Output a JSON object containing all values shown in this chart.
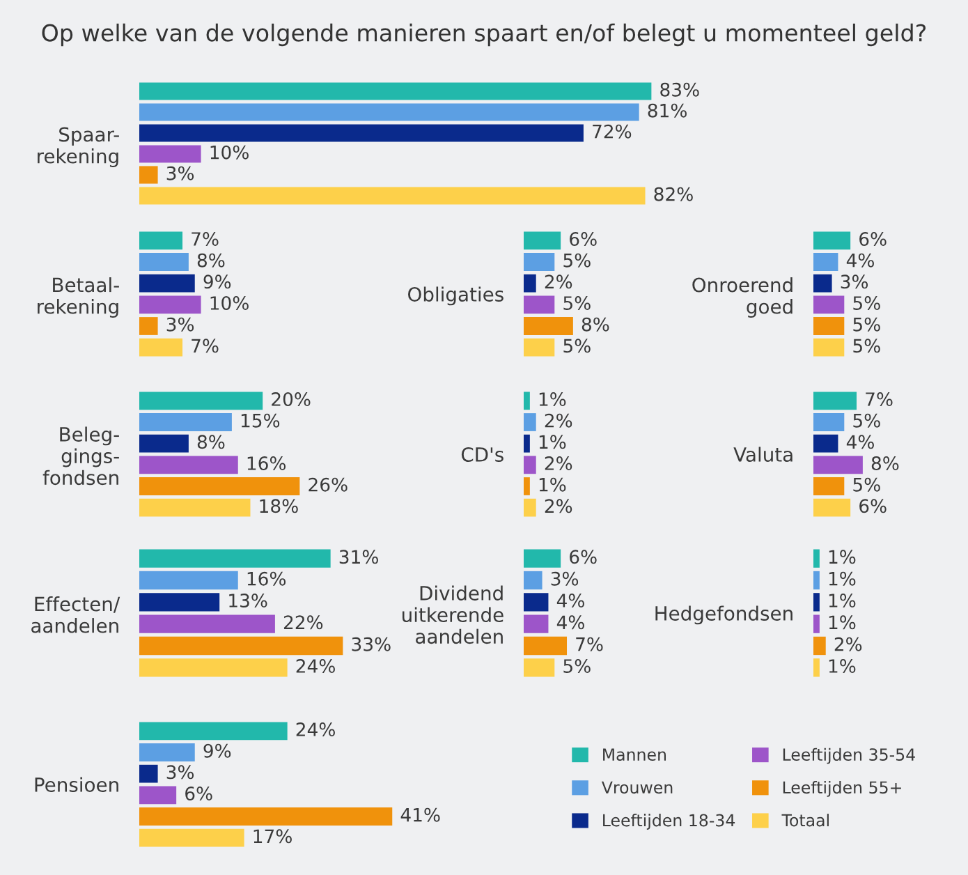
{
  "chart_data": [
    {
      "type": "bar",
      "orientation": "horizontal",
      "title": "Op welke van de volgende manieren spaart en/of belegt u momenteel geld?",
      "categories": [
        "Spaar-\nrekening"
      ],
      "series": [
        {
          "color": "#22b8ab",
          "values": [
            83
          ],
          "value_labels": [
            "83%"
          ]
        },
        {
          "color": "#5c9fe3",
          "values": [
            81
          ],
          "value_labels": [
            "81%"
          ]
        },
        {
          "color": "#0a2a8c",
          "values": [
            72
          ],
          "value_labels": [
            "72%"
          ]
        },
        {
          "color": "#9d55c9",
          "values": [
            10
          ],
          "value_labels": [
            "10%"
          ]
        },
        {
          "color": "#f0920c",
          "values": [
            3
          ],
          "value_labels": [
            "3%"
          ]
        },
        {
          "color": "#fdd04a",
          "values": [
            82
          ],
          "value_labels": [
            "82%"
          ]
        }
      ]
    },
    {
      "type": "bar",
      "orientation": "horizontal",
      "categories": [
        "Betaal-\nrekening"
      ],
      "series": [
        {
          "color": "#22b8ab",
          "values": [
            7
          ],
          "value_labels": [
            "7%"
          ]
        },
        {
          "color": "#5c9fe3",
          "values": [
            8
          ],
          "value_labels": [
            "8%"
          ]
        },
        {
          "color": "#0a2a8c",
          "values": [
            9
          ],
          "value_labels": [
            "9%"
          ]
        },
        {
          "color": "#9d55c9",
          "values": [
            10
          ],
          "value_labels": [
            "10%"
          ]
        },
        {
          "color": "#f0920c",
          "values": [
            3
          ],
          "value_labels": [
            "3%"
          ]
        },
        {
          "color": "#fdd04a",
          "values": [
            7
          ],
          "value_labels": [
            "7%"
          ]
        }
      ]
    },
    {
      "type": "bar",
      "orientation": "horizontal",
      "categories": [
        "Obligaties"
      ],
      "series": [
        {
          "color": "#22b8ab",
          "values": [
            6
          ],
          "value_labels": [
            "6%"
          ]
        },
        {
          "color": "#5c9fe3",
          "values": [
            5
          ],
          "value_labels": [
            "5%"
          ]
        },
        {
          "color": "#0a2a8c",
          "values": [
            2
          ],
          "value_labels": [
            "2%"
          ]
        },
        {
          "color": "#9d55c9",
          "values": [
            5
          ],
          "value_labels": [
            "5%"
          ]
        },
        {
          "color": "#f0920c",
          "values": [
            8
          ],
          "value_labels": [
            "8%"
          ]
        },
        {
          "color": "#fdd04a",
          "values": [
            5
          ],
          "value_labels": [
            "5%"
          ]
        }
      ]
    },
    {
      "type": "bar",
      "orientation": "horizontal",
      "categories": [
        "Onroerend\ngoed"
      ],
      "series": [
        {
          "color": "#22b8ab",
          "values": [
            6
          ],
          "value_labels": [
            "6%"
          ]
        },
        {
          "color": "#5c9fe3",
          "values": [
            4
          ],
          "value_labels": [
            "4%"
          ]
        },
        {
          "color": "#0a2a8c",
          "values": [
            3
          ],
          "value_labels": [
            "3%"
          ]
        },
        {
          "color": "#9d55c9",
          "values": [
            5
          ],
          "value_labels": [
            "5%"
          ]
        },
        {
          "color": "#f0920c",
          "values": [
            5
          ],
          "value_labels": [
            "5%"
          ]
        },
        {
          "color": "#fdd04a",
          "values": [
            5
          ],
          "value_labels": [
            "5%"
          ]
        }
      ]
    },
    {
      "type": "bar",
      "orientation": "horizontal",
      "categories": [
        "Beleg-\ngings-\nfondsen"
      ],
      "series": [
        {
          "color": "#22b8ab",
          "values": [
            20
          ],
          "value_labels": [
            "20%"
          ]
        },
        {
          "color": "#5c9fe3",
          "values": [
            15
          ],
          "value_labels": [
            "15%"
          ]
        },
        {
          "color": "#0a2a8c",
          "values": [
            8
          ],
          "value_labels": [
            "8%"
          ]
        },
        {
          "color": "#9d55c9",
          "values": [
            16
          ],
          "value_labels": [
            "16%"
          ]
        },
        {
          "color": "#f0920c",
          "values": [
            26
          ],
          "value_labels": [
            "26%"
          ]
        },
        {
          "color": "#fdd04a",
          "values": [
            18
          ],
          "value_labels": [
            "18%"
          ]
        }
      ]
    },
    {
      "type": "bar",
      "orientation": "horizontal",
      "categories": [
        "CD's"
      ],
      "series": [
        {
          "color": "#22b8ab",
          "values": [
            1
          ],
          "value_labels": [
            "1%"
          ]
        },
        {
          "color": "#5c9fe3",
          "values": [
            2
          ],
          "value_labels": [
            "2%"
          ]
        },
        {
          "color": "#0a2a8c",
          "values": [
            1
          ],
          "value_labels": [
            "1%"
          ]
        },
        {
          "color": "#9d55c9",
          "values": [
            2
          ],
          "value_labels": [
            "2%"
          ]
        },
        {
          "color": "#f0920c",
          "values": [
            1
          ],
          "value_labels": [
            "1%"
          ]
        },
        {
          "color": "#fdd04a",
          "values": [
            2
          ],
          "value_labels": [
            "2%"
          ]
        }
      ]
    },
    {
      "type": "bar",
      "orientation": "horizontal",
      "categories": [
        "Valuta"
      ],
      "series": [
        {
          "color": "#22b8ab",
          "values": [
            7
          ],
          "value_labels": [
            "7%"
          ]
        },
        {
          "color": "#5c9fe3",
          "values": [
            5
          ],
          "value_labels": [
            "5%"
          ]
        },
        {
          "color": "#0a2a8c",
          "values": [
            4
          ],
          "value_labels": [
            "4%"
          ]
        },
        {
          "color": "#9d55c9",
          "values": [
            8
          ],
          "value_labels": [
            "8%"
          ]
        },
        {
          "color": "#f0920c",
          "values": [
            5
          ],
          "value_labels": [
            "5%"
          ]
        },
        {
          "color": "#fdd04a",
          "values": [
            6
          ],
          "value_labels": [
            "6%"
          ]
        }
      ]
    },
    {
      "type": "bar",
      "orientation": "horizontal",
      "categories": [
        "Effecten/\naandelen"
      ],
      "series": [
        {
          "color": "#22b8ab",
          "values": [
            31
          ],
          "value_labels": [
            "31%"
          ]
        },
        {
          "color": "#5c9fe3",
          "values": [
            16
          ],
          "value_labels": [
            "16%"
          ]
        },
        {
          "color": "#0a2a8c",
          "values": [
            13
          ],
          "value_labels": [
            "13%"
          ]
        },
        {
          "color": "#9d55c9",
          "values": [
            22
          ],
          "value_labels": [
            "22%"
          ]
        },
        {
          "color": "#f0920c",
          "values": [
            33
          ],
          "value_labels": [
            "33%"
          ]
        },
        {
          "color": "#fdd04a",
          "values": [
            24
          ],
          "value_labels": [
            "24%"
          ]
        }
      ]
    },
    {
      "type": "bar",
      "orientation": "horizontal",
      "categories": [
        "Dividend\nuitkerende\naandelen"
      ],
      "series": [
        {
          "color": "#22b8ab",
          "values": [
            6
          ],
          "value_labels": [
            "6%"
          ]
        },
        {
          "color": "#5c9fe3",
          "values": [
            3
          ],
          "value_labels": [
            "3%"
          ]
        },
        {
          "color": "#0a2a8c",
          "values": [
            4
          ],
          "value_labels": [
            "4%"
          ]
        },
        {
          "color": "#9d55c9",
          "values": [
            4
          ],
          "value_labels": [
            "4%"
          ]
        },
        {
          "color": "#f0920c",
          "values": [
            7
          ],
          "value_labels": [
            "7%"
          ]
        },
        {
          "color": "#fdd04a",
          "values": [
            5
          ],
          "value_labels": [
            "5%"
          ]
        }
      ]
    },
    {
      "type": "bar",
      "orientation": "horizontal",
      "categories": [
        "Hedgefondsen"
      ],
      "series": [
        {
          "color": "#22b8ab",
          "values": [
            1
          ],
          "value_labels": [
            "1%"
          ]
        },
        {
          "color": "#5c9fe3",
          "values": [
            1
          ],
          "value_labels": [
            "1%"
          ]
        },
        {
          "color": "#0a2a8c",
          "values": [
            1
          ],
          "value_labels": [
            "1%"
          ]
        },
        {
          "color": "#9d55c9",
          "values": [
            1
          ],
          "value_labels": [
            "1%"
          ]
        },
        {
          "color": "#f0920c",
          "values": [
            2
          ],
          "value_labels": [
            "2%"
          ]
        },
        {
          "color": "#fdd04a",
          "values": [
            1
          ],
          "value_labels": [
            "1%"
          ]
        }
      ]
    },
    {
      "type": "bar",
      "orientation": "horizontal",
      "categories": [
        "Pensioen"
      ],
      "legend": "right",
      "series": [
        {
          "name": "Mannen",
          "color": "#22b8ab",
          "values": [
            24
          ],
          "value_labels": [
            "24%"
          ]
        },
        {
          "name": "Vrouwen",
          "color": "#5c9fe3",
          "values": [
            9
          ],
          "value_labels": [
            "9%"
          ]
        },
        {
          "name": "Leeftijden 18-34",
          "color": "#0a2a8c",
          "values": [
            3
          ],
          "value_labels": [
            "3%"
          ]
        },
        {
          "name": "Leeftijden 35-54",
          "color": "#9d55c9",
          "values": [
            6
          ],
          "value_labels": [
            "6%"
          ]
        },
        {
          "name": "Leeftijden 55+",
          "color": "#f0920c",
          "values": [
            41
          ],
          "value_labels": [
            "41%"
          ]
        },
        {
          "name": "Totaal",
          "color": "#fdd04a",
          "values": [
            17
          ],
          "value_labels": [
            "17%"
          ]
        }
      ]
    }
  ]
}
